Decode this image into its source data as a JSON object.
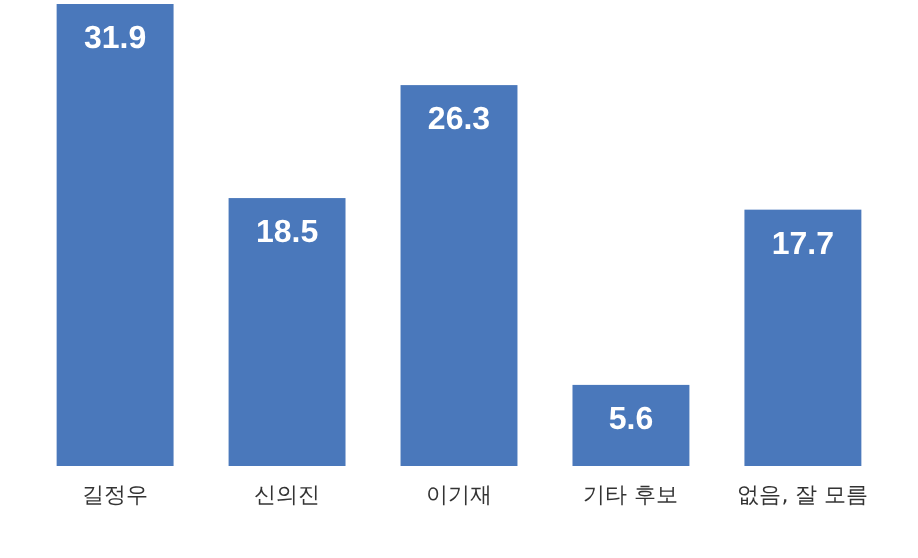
{
  "chart_data": {
    "type": "bar",
    "categories": [
      "길정우",
      "신의진",
      "이기재",
      "기타 후보",
      "없음, 잘 모름"
    ],
    "values": [
      31.9,
      18.5,
      26.3,
      5.6,
      17.7
    ],
    "color": "#4a78bb",
    "data_labels": true
  }
}
